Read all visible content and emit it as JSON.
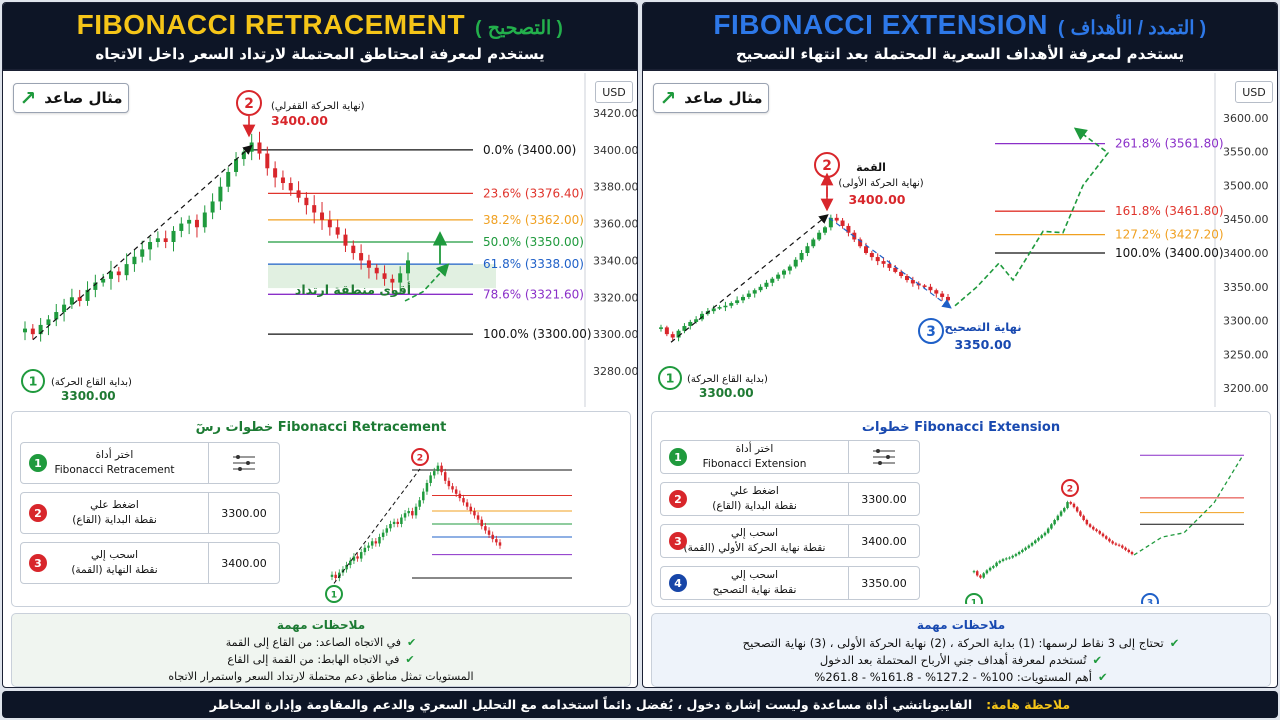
{
  "footer": {
    "label": "ملاحظة هامة:",
    "text": "الفايبوناتشي أداة مساعدة وليست إشارة دخول ، يُفضل دائماً استخدامه مع التحليل السعري والدعم والمقاومة وإدارة المخاطر"
  },
  "left": {
    "title": "FIBONACCI RETRACEMENT",
    "title_sub": "( التصحيح )",
    "description": "يستخدم لمعرفة امحتاطق المحتملة لارتداد السعر داخل الاتجاه",
    "badge": "مثال صاعد",
    "currency": "USD",
    "chart_data": {
      "type": "candlestick",
      "yaxis": {
        "min": 3280,
        "max": 3420,
        "ticks": [
          "3420.00",
          "3400.00",
          "3380.00",
          "3360.00",
          "3340.00",
          "3320.00",
          "3300.00",
          "3280.00"
        ]
      },
      "levels": [
        {
          "label": "0.0% (3400.00)",
          "value": 3400,
          "color": "#111111"
        },
        {
          "label": "23.6% (3376.40)",
          "value": 3376.4,
          "color": "#e0342c"
        },
        {
          "label": "38.2% (3362.00)",
          "value": 3362,
          "color": "#f0a020"
        },
        {
          "label": "50.0% (3350.00)",
          "value": 3350,
          "color": "#1f9a3d"
        },
        {
          "label": "61.8% (3338.00)",
          "value": 3338,
          "color": "#1f60c8"
        },
        {
          "label": "78.6% (3321.60)",
          "value": 3321.6,
          "color": "#8a2fc8"
        },
        {
          "label": "100.0% (3300.00)",
          "value": 3300,
          "color": "#111111"
        }
      ],
      "point1": {
        "num": "1",
        "label": "(بداية القاع الحركة)",
        "price": "3300.00"
      },
      "point2": {
        "num": "2",
        "label": "(نهاية الحركة القفرلي)",
        "price": "3400.00"
      },
      "zone_label": "أقوى منطقة ارتداد",
      "path": [
        3303,
        3300,
        3305,
        3308,
        3312,
        3316,
        3320,
        3318,
        3324,
        3328,
        3330,
        3334,
        3332,
        3338,
        3342,
        3346,
        3350,
        3352,
        3350,
        3356,
        3360,
        3362,
        3358,
        3366,
        3372,
        3380,
        3388,
        3395,
        3399,
        3404,
        3398,
        3390,
        3385,
        3382,
        3378,
        3374,
        3370,
        3366,
        3362,
        3358,
        3354,
        3348,
        3344,
        3340,
        3336,
        3333,
        3330,
        3328,
        3333,
        3340
      ]
    },
    "steps_title": "خطوات رسٓ Fibonacci Retracement",
    "steps": [
      {
        "num": "1",
        "line1": "اختر أداة",
        "line2": "Fibonacci Retracement",
        "value": ""
      },
      {
        "num": "2",
        "line1": "اضغط علي",
        "line2": "نقطة البداية (القاع)",
        "value": "3300.00"
      },
      {
        "num": "3",
        "line1": "اسحب إلي",
        "line2": "نقطة النهاية (القمة)",
        "value": "3400.00"
      }
    ],
    "mini": {
      "p1": "1",
      "p2": "2"
    },
    "notes_title": "ملاحظات مهمة",
    "notes": [
      "في الاتجاه الصاعد: من القاع إلى القمة",
      "في الاتجاه الهابط: من القمة إلى القاع",
      "المستويات تمثل مناطق دعم محتملة لارتداد السعر واستمرار الاتجاه"
    ]
  },
  "right": {
    "title": "FIBONACCI EXTENSION",
    "title_sub": "( التمدد / الأهداف )",
    "description": "يستخدم لمعرفة الأهداف السعرية المحتملة بعد انتهاء التصحيح",
    "badge": "مثال صاعد",
    "currency": "USD",
    "chart_data": {
      "type": "candlestick",
      "yaxis": {
        "min": 3190,
        "max": 3610,
        "ticks": [
          "3600.00",
          "3550.00",
          "3500.00",
          "3450.00",
          "3400.00",
          "3350.00",
          "3300.00",
          "3250.00",
          "3200.00"
        ]
      },
      "levels": [
        {
          "label": "261.8% (3561.80)",
          "value": 3561.8,
          "color": "#8a2fc8"
        },
        {
          "label": "161.8% (3461.80)",
          "value": 3461.8,
          "color": "#e0342c"
        },
        {
          "label": "127.2% (3427.20)",
          "value": 3427.2,
          "color": "#f0a020"
        },
        {
          "label": "100.0% (3400.00)",
          "value": 3400,
          "color": "#111111"
        }
      ],
      "point1": {
        "num": "1",
        "label": "(بداية القاع الحركة)",
        "price": "3300.00"
      },
      "point2": {
        "num": "2",
        "title": "القمة",
        "label": "(نهاية الحركة الأولى)",
        "price": "3400.00"
      },
      "point3": {
        "num": "3",
        "label": "نهاية التصحيح",
        "price": "3350.00"
      },
      "path": [
        3290,
        3280,
        3275,
        3285,
        3292,
        3298,
        3302,
        3310,
        3314,
        3318,
        3320,
        3322,
        3326,
        3330,
        3335,
        3340,
        3345,
        3350,
        3356,
        3362,
        3368,
        3374,
        3380,
        3390,
        3400,
        3410,
        3420,
        3430,
        3438,
        3452,
        3448,
        3440,
        3430,
        3420,
        3410,
        3400,
        3394,
        3388,
        3384,
        3378,
        3372,
        3366,
        3360,
        3355,
        3352,
        3350,
        3345,
        3340,
        3335,
        3330
      ]
    },
    "steps_title": "خطوات Fibonacci Extension",
    "steps": [
      {
        "num": "1",
        "line1": "اختر أداة",
        "line2": "Fibonacci Extension",
        "value": ""
      },
      {
        "num": "2",
        "line1": "اضغط علي",
        "line2": "نقطة البداية (القاع)",
        "value": "3300.00"
      },
      {
        "num": "3",
        "line1": "اسحب إلي",
        "line2": "نقطة نهاية الحركة الأولي (القمة)",
        "value": "3400.00"
      },
      {
        "num": "4",
        "line1": "اسحب إلي",
        "line2": "نقطة نهاية التصحيح",
        "value": "3350.00"
      }
    ],
    "mini": {
      "p1": "1",
      "p2": "2",
      "p3": "3"
    },
    "notes_title": "ملاحظات مهمة",
    "notes": [
      "تحتاج إلى 3 نقاط لرسمها: (1) بداية الحركة ، (2) نهاية الحركة الأولى ، (3) نهاية التصحيح",
      "تُستخدم لمعرفة أهداف جني الأرباح المحتملة بعد الدخول",
      "أهم المستويات: 100% - 127.2% - 161.8% - 261.8%"
    ]
  }
}
